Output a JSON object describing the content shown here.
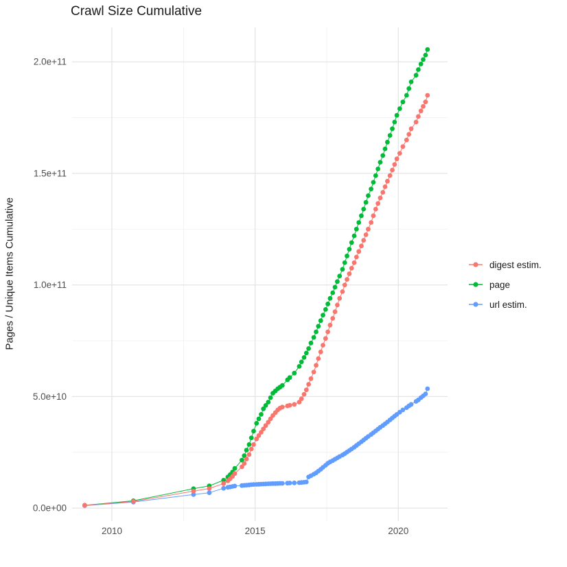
{
  "page": {
    "background": "#FFFFFF"
  },
  "chart_data": {
    "type": "line-scatter",
    "title": "Crawl Size Cumulative",
    "xlabel": "",
    "ylabel": "Pages / Unique Items Cumulative",
    "x_axis": {
      "range": [
        2008.61,
        2021.72
      ],
      "major_ticks": [
        {
          "value": 2010,
          "label": "2010"
        },
        {
          "value": 2015,
          "label": "2015"
        },
        {
          "value": 2020,
          "label": "2020"
        }
      ],
      "minor_ticks": [
        2012.5,
        2017.5
      ]
    },
    "y_axis": {
      "unit_e9": true,
      "range_e9": [
        -5.8,
        215.4
      ],
      "major_ticks": [
        {
          "value_e9": 0,
          "label": "0.0e+00"
        },
        {
          "value_e9": 50,
          "label": "5.0e+10"
        },
        {
          "value_e9": 100,
          "label": "1.0e+11"
        },
        {
          "value_e9": 150,
          "label": "1.5e+11"
        },
        {
          "value_e9": 200,
          "label": "2.0e+11"
        }
      ],
      "minor_ticks_e9": [
        25,
        75,
        125,
        175
      ]
    },
    "grid": {
      "visible": true,
      "major_color": "#E4E4E4",
      "minor_color": "#EFEFEF"
    },
    "style": {
      "axis_text_color": "#4D4D4D",
      "title_color": "#1A1A1A",
      "point_radius": 3.4,
      "line_width": 1
    },
    "legend": {
      "position": "right"
    },
    "x": [
      2009.05,
      2010.75,
      2012.85,
      2013.4,
      2013.9,
      2014.05,
      2014.13,
      2014.21,
      2014.29,
      2014.54,
      2014.62,
      2014.7,
      2014.79,
      2014.87,
      2014.95,
      2015.05,
      2015.13,
      2015.21,
      2015.29,
      2015.37,
      2015.46,
      2015.54,
      2015.62,
      2015.71,
      2015.79,
      2015.87,
      2015.95,
      2016.13,
      2016.21,
      2016.37,
      2016.54,
      2016.62,
      2016.71,
      2016.79,
      2016.87,
      2016.95,
      2017.05,
      2017.13,
      2017.21,
      2017.29,
      2017.37,
      2017.46,
      2017.54,
      2017.62,
      2017.71,
      2017.79,
      2017.87,
      2017.95,
      2018.05,
      2018.13,
      2018.21,
      2018.29,
      2018.37,
      2018.46,
      2018.54,
      2018.62,
      2018.71,
      2018.79,
      2018.87,
      2018.95,
      2019.05,
      2019.13,
      2019.21,
      2019.29,
      2019.37,
      2019.46,
      2019.54,
      2019.62,
      2019.71,
      2019.79,
      2019.87,
      2019.95,
      2020.05,
      2020.16,
      2020.29,
      2020.37,
      2020.45,
      2020.62,
      2020.7,
      2020.79,
      2020.87,
      2020.95,
      2021.02
    ],
    "series": [
      {
        "name": "digest estim.",
        "color": "#F8766D",
        "z": 3,
        "values_e9": [
          1.2,
          3.0,
          7.6,
          8.8,
          11.0,
          12.2,
          13.2,
          14.2,
          15.5,
          18.5,
          20.0,
          22.0,
          24.0,
          26.5,
          28.5,
          31.0,
          32.5,
          34.0,
          35.5,
          37.0,
          38.5,
          40.0,
          41.5,
          42.8,
          44.0,
          44.8,
          45.3,
          45.8,
          46.1,
          46.5,
          47.5,
          49.0,
          51.0,
          53.0,
          55.5,
          58.0,
          61.0,
          64.0,
          67.0,
          70.0,
          73.0,
          76.0,
          79.0,
          82.0,
          85.0,
          88.0,
          91.0,
          94.0,
          97.0,
          100.0,
          102.5,
          105.0,
          107.5,
          110.0,
          112.5,
          115.0,
          117.5,
          120.0,
          122.5,
          125.0,
          128.0,
          131.0,
          134.0,
          136.5,
          139.0,
          141.5,
          144.0,
          146.5,
          149.0,
          151.5,
          154.0,
          156.5,
          159.0,
          162.0,
          165.0,
          167.5,
          170.0,
          173.0,
          175.5,
          178.0,
          180.0,
          182.0,
          185.0
        ]
      },
      {
        "name": "page",
        "color": "#00BA38",
        "z": 1,
        "values_e9": [
          1.3,
          3.3,
          8.7,
          10.0,
          12.5,
          14.0,
          15.0,
          16.2,
          17.8,
          21.5,
          23.5,
          26.0,
          28.5,
          31.5,
          34.5,
          38.0,
          40.0,
          42.0,
          44.5,
          46.0,
          47.5,
          49.5,
          51.5,
          52.5,
          53.5,
          54.2,
          55.0,
          57.5,
          58.5,
          60.5,
          63.5,
          65.5,
          67.5,
          69.5,
          71.5,
          74.0,
          76.5,
          79.0,
          81.5,
          84.0,
          86.5,
          89.0,
          91.5,
          94.0,
          96.5,
          99.0,
          101.5,
          104.0,
          107.0,
          110.0,
          113.0,
          116.0,
          119.0,
          122.0,
          125.0,
          128.0,
          131.0,
          134.0,
          137.0,
          140.0,
          143.0,
          146.0,
          149.0,
          152.0,
          155.0,
          158.0,
          161.0,
          164.0,
          167.0,
          170.0,
          173.0,
          176.0,
          179.0,
          182.0,
          185.0,
          188.0,
          191.0,
          194.0,
          196.5,
          199.0,
          201.0,
          203.0,
          205.5
        ]
      },
      {
        "name": "url estim.",
        "color": "#619CFF",
        "z": 2,
        "values_e9": [
          1.1,
          2.7,
          6.1,
          6.9,
          8.9,
          9.3,
          9.5,
          9.7,
          9.9,
          10.1,
          10.2,
          10.3,
          10.4,
          10.5,
          10.6,
          10.65,
          10.7,
          10.75,
          10.8,
          10.85,
          10.9,
          10.95,
          11.0,
          11.0,
          11.05,
          11.1,
          11.1,
          11.2,
          11.25,
          11.3,
          11.4,
          11.5,
          11.6,
          11.7,
          14.0,
          14.5,
          15.2,
          15.8,
          16.6,
          17.4,
          18.3,
          19.2,
          20.1,
          20.7,
          21.3,
          21.9,
          22.5,
          23.1,
          23.8,
          24.4,
          25.1,
          25.8,
          26.5,
          27.3,
          28.1,
          28.9,
          29.7,
          30.5,
          31.3,
          32.1,
          33.0,
          33.8,
          34.6,
          35.4,
          36.2,
          37.0,
          37.8,
          38.6,
          39.5,
          40.4,
          41.2,
          42.0,
          43.0,
          44.0,
          45.0,
          45.8,
          46.5,
          47.8,
          48.5,
          49.5,
          50.3,
          51.2,
          53.5
        ]
      }
    ]
  }
}
